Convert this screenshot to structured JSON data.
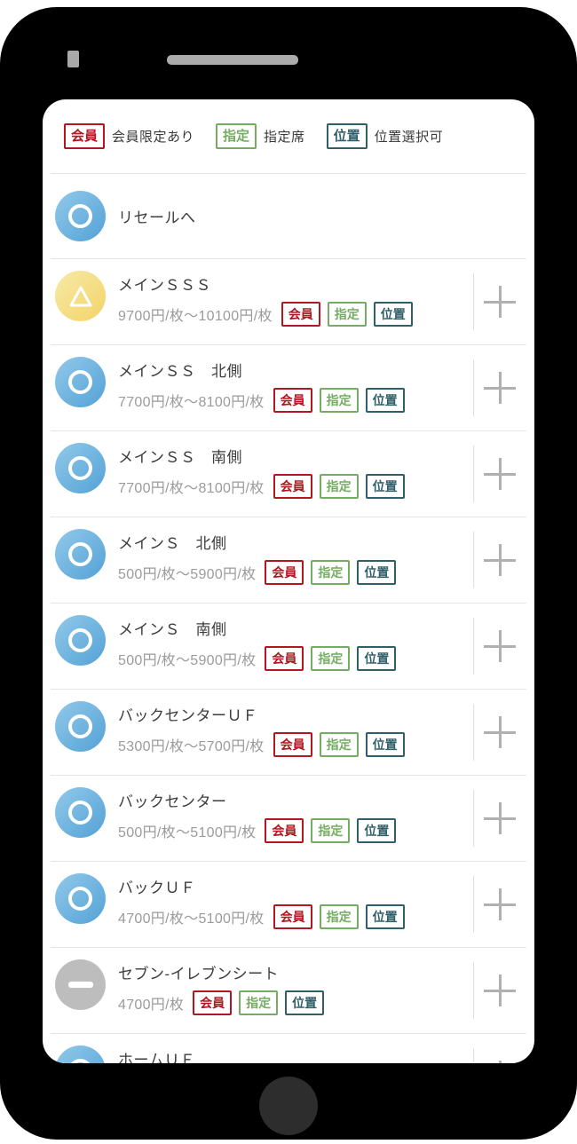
{
  "colors": {
    "member_red": "#b01721",
    "reserved_green": "#74ad62",
    "position_teal": "#2f5f68",
    "circle_blue_light": "#92c9ea",
    "circle_blue_dark": "#53a2d6",
    "circle_yellow_light": "#f8e9a8",
    "circle_yellow_dark": "#f2d467",
    "circle_gray": "#bdbdbd"
  },
  "legend": {
    "items": [
      {
        "badge": "会員",
        "label": "会員限定あり",
        "type": "member"
      },
      {
        "badge": "指定",
        "label": "指定席",
        "type": "reserved"
      },
      {
        "badge": "位置",
        "label": "位置選択可",
        "type": "position"
      }
    ]
  },
  "resale": {
    "title": "リセールへ"
  },
  "rows": [
    {
      "title": "メインＳＳＳ",
      "price": "9700円/枚〜10100円/枚",
      "availability": "few",
      "badges": [
        {
          "label": "会員",
          "type": "member"
        },
        {
          "label": "指定",
          "type": "reserved"
        },
        {
          "label": "位置",
          "type": "position"
        }
      ],
      "plus": true
    },
    {
      "title": "メインＳＳ　北側",
      "price": "7700円/枚〜8100円/枚",
      "availability": "available",
      "badges": [
        {
          "label": "会員",
          "type": "member"
        },
        {
          "label": "指定",
          "type": "reserved"
        },
        {
          "label": "位置",
          "type": "position"
        }
      ],
      "plus": true
    },
    {
      "title": "メインＳＳ　南側",
      "price": "7700円/枚〜8100円/枚",
      "availability": "available",
      "badges": [
        {
          "label": "会員",
          "type": "member"
        },
        {
          "label": "指定",
          "type": "reserved"
        },
        {
          "label": "位置",
          "type": "position"
        }
      ],
      "plus": true
    },
    {
      "title": "メインＳ　北側",
      "price": "500円/枚〜5900円/枚",
      "availability": "available",
      "badges": [
        {
          "label": "会員",
          "type": "member"
        },
        {
          "label": "指定",
          "type": "reserved"
        },
        {
          "label": "位置",
          "type": "position"
        }
      ],
      "plus": true
    },
    {
      "title": "メインＳ　南側",
      "price": "500円/枚〜5900円/枚",
      "availability": "available",
      "badges": [
        {
          "label": "会員",
          "type": "member"
        },
        {
          "label": "指定",
          "type": "reserved"
        },
        {
          "label": "位置",
          "type": "position"
        }
      ],
      "plus": true
    },
    {
      "title": "バックセンターＵＦ",
      "price": "5300円/枚〜5700円/枚",
      "availability": "available",
      "badges": [
        {
          "label": "会員",
          "type": "member"
        },
        {
          "label": "指定",
          "type": "reserved"
        },
        {
          "label": "位置",
          "type": "position"
        }
      ],
      "plus": true
    },
    {
      "title": "バックセンター",
      "price": "500円/枚〜5100円/枚",
      "availability": "available",
      "badges": [
        {
          "label": "会員",
          "type": "member"
        },
        {
          "label": "指定",
          "type": "reserved"
        },
        {
          "label": "位置",
          "type": "position"
        }
      ],
      "plus": true
    },
    {
      "title": "バックＵＦ",
      "price": "4700円/枚〜5100円/枚",
      "availability": "available",
      "badges": [
        {
          "label": "会員",
          "type": "member"
        },
        {
          "label": "指定",
          "type": "reserved"
        },
        {
          "label": "位置",
          "type": "position"
        }
      ],
      "plus": true
    },
    {
      "title": "セブン-イレブンシート",
      "price": "4700円/枚",
      "availability": "none",
      "badges": [
        {
          "label": "会員",
          "type": "member"
        },
        {
          "label": "指定",
          "type": "reserved"
        },
        {
          "label": "位置",
          "type": "position"
        }
      ],
      "plus": true
    },
    {
      "title": "ホームＵＦ",
      "price": "",
      "availability": "available",
      "badges": [],
      "plus": true
    }
  ]
}
